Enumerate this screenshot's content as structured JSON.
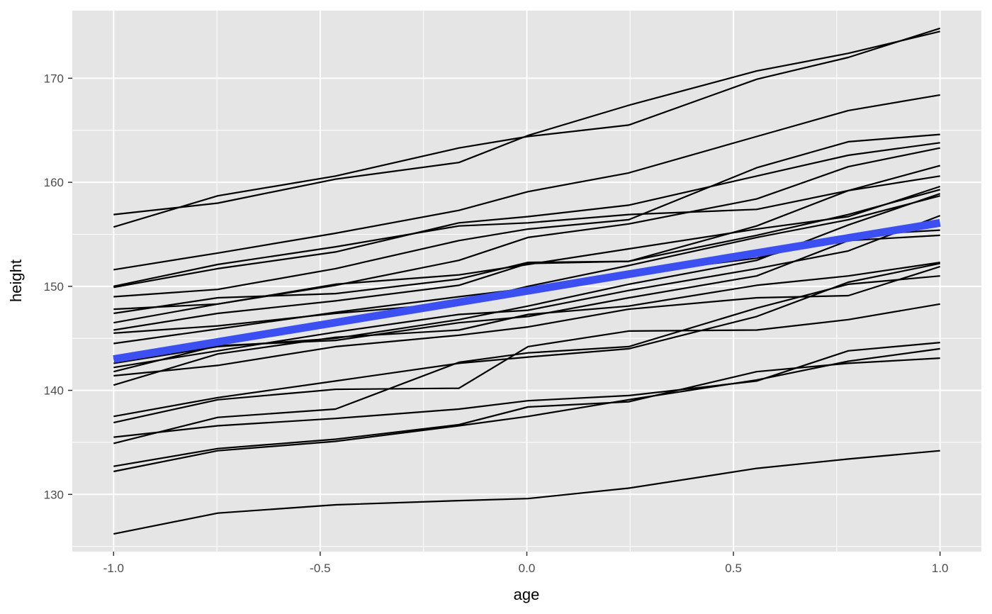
{
  "chart_data": {
    "type": "line",
    "title": "",
    "xlabel": "age",
    "ylabel": "height",
    "xlim": [
      -1.1,
      1.1
    ],
    "ylim": [
      124.5,
      176.5
    ],
    "x": [
      -1.0,
      -0.7479,
      -0.463,
      -0.1643,
      0.0027,
      0.2466,
      0.5562,
      0.778,
      1.0
    ],
    "x_ticks": [
      -1.0,
      -0.5,
      0.0,
      0.5,
      1.0
    ],
    "x_tick_labels": [
      "-1.0",
      "-0.5",
      "0.0",
      "0.5",
      "1.0"
    ],
    "y_ticks": [
      130,
      140,
      150,
      160,
      170
    ],
    "y_tick_labels": [
      "130",
      "140",
      "150",
      "160",
      "170"
    ],
    "grid": true,
    "legend": "none",
    "colors": {
      "panel": "#e5e5e5",
      "grid": "#ffffff",
      "series": "#000000",
      "trend": "#3c50f2"
    },
    "series": [
      {
        "values": [
          156.9,
          158.0,
          160.3,
          161.9,
          164.5,
          167.4,
          170.7,
          172.4,
          174.5
        ]
      },
      {
        "values": [
          155.7,
          158.7,
          160.6,
          163.3,
          164.4,
          165.5,
          169.9,
          172.0,
          174.8
        ]
      },
      {
        "values": [
          151.6,
          153.2,
          155.1,
          157.3,
          159.1,
          160.9,
          164.4,
          166.9,
          168.4
        ]
      },
      {
        "values": [
          150.0,
          152.1,
          153.8,
          155.8,
          156.1,
          156.9,
          157.4,
          159.2,
          160.6
        ]
      },
      {
        "values": [
          149.9,
          151.7,
          153.3,
          156.1,
          156.7,
          157.8,
          160.6,
          162.6,
          163.8
        ]
      },
      {
        "values": [
          149.0,
          149.7,
          151.7,
          154.4,
          155.5,
          156.4,
          161.4,
          163.9,
          164.6
        ]
      },
      {
        "values": [
          147.8,
          148.3,
          150.1,
          152.5,
          154.7,
          156.0,
          158.4,
          161.5,
          163.3
        ]
      },
      {
        "values": [
          147.4,
          148.9,
          149.3,
          150.7,
          152.3,
          152.4,
          155.8,
          159.2,
          161.6
        ]
      },
      {
        "values": [
          146.5,
          148.3,
          150.2,
          151.1,
          152.1,
          153.6,
          155.5,
          156.7,
          159.6
        ]
      },
      {
        "values": [
          145.8,
          147.4,
          148.6,
          150.1,
          152.2,
          152.4,
          154.9,
          156.9,
          159.3
        ]
      },
      {
        "values": [
          145.5,
          146.2,
          147.4,
          148.4,
          150.0,
          152.0,
          154.7,
          156.4,
          158.7
        ]
      },
      {
        "values": [
          144.5,
          145.9,
          147.5,
          149.0,
          149.8,
          151.2,
          152.7,
          154.9,
          155.4
        ]
      },
      {
        "values": [
          143.0,
          144.9,
          146.3,
          148.2,
          149.6,
          151.0,
          153.0,
          154.6,
          156.0
        ]
      },
      {
        "values": [
          142.6,
          144.2,
          145.0,
          146.8,
          148.1,
          150.2,
          152.5,
          155.9,
          158.9
        ]
      },
      {
        "values": [
          142.2,
          143.8,
          145.6,
          147.3,
          147.7,
          149.6,
          151.7,
          153.4,
          156.8
        ]
      },
      {
        "values": [
          141.8,
          144.3,
          144.8,
          146.5,
          147.1,
          148.9,
          151.0,
          154.4,
          154.9
        ]
      },
      {
        "values": [
          141.4,
          142.4,
          144.2,
          145.3,
          146.1,
          147.8,
          148.9,
          149.1,
          151.9
        ]
      },
      {
        "values": [
          140.5,
          143.5,
          145.1,
          145.8,
          147.3,
          148.1,
          150.1,
          151.0,
          152.3
        ]
      },
      {
        "values": [
          137.5,
          139.3,
          140.9,
          142.6,
          143.2,
          144.0,
          147.1,
          150.4,
          152.2
        ]
      },
      {
        "values": [
          136.9,
          139.1,
          140.1,
          140.2,
          144.2,
          145.7,
          145.8,
          146.8,
          148.3
        ]
      },
      {
        "values": [
          135.5,
          136.6,
          137.3,
          138.2,
          139.0,
          139.5,
          140.9,
          143.8,
          144.6
        ]
      },
      {
        "values": [
          134.9,
          137.4,
          138.2,
          142.7,
          143.6,
          144.2,
          147.9,
          150.2,
          151.0
        ]
      },
      {
        "values": [
          132.7,
          134.4,
          135.3,
          136.7,
          138.4,
          138.9,
          141.8,
          142.6,
          143.1
        ]
      },
      {
        "values": [
          132.2,
          134.2,
          135.1,
          136.6,
          137.5,
          139.1,
          141.0,
          142.8,
          144.0
        ]
      },
      {
        "values": [
          126.2,
          128.2,
          129.0,
          129.4,
          129.6,
          130.6,
          132.5,
          133.4,
          134.2
        ]
      }
    ],
    "trend": {
      "x": [
        -1.0,
        1.0
      ],
      "values": [
        143.0,
        156.1
      ]
    }
  }
}
